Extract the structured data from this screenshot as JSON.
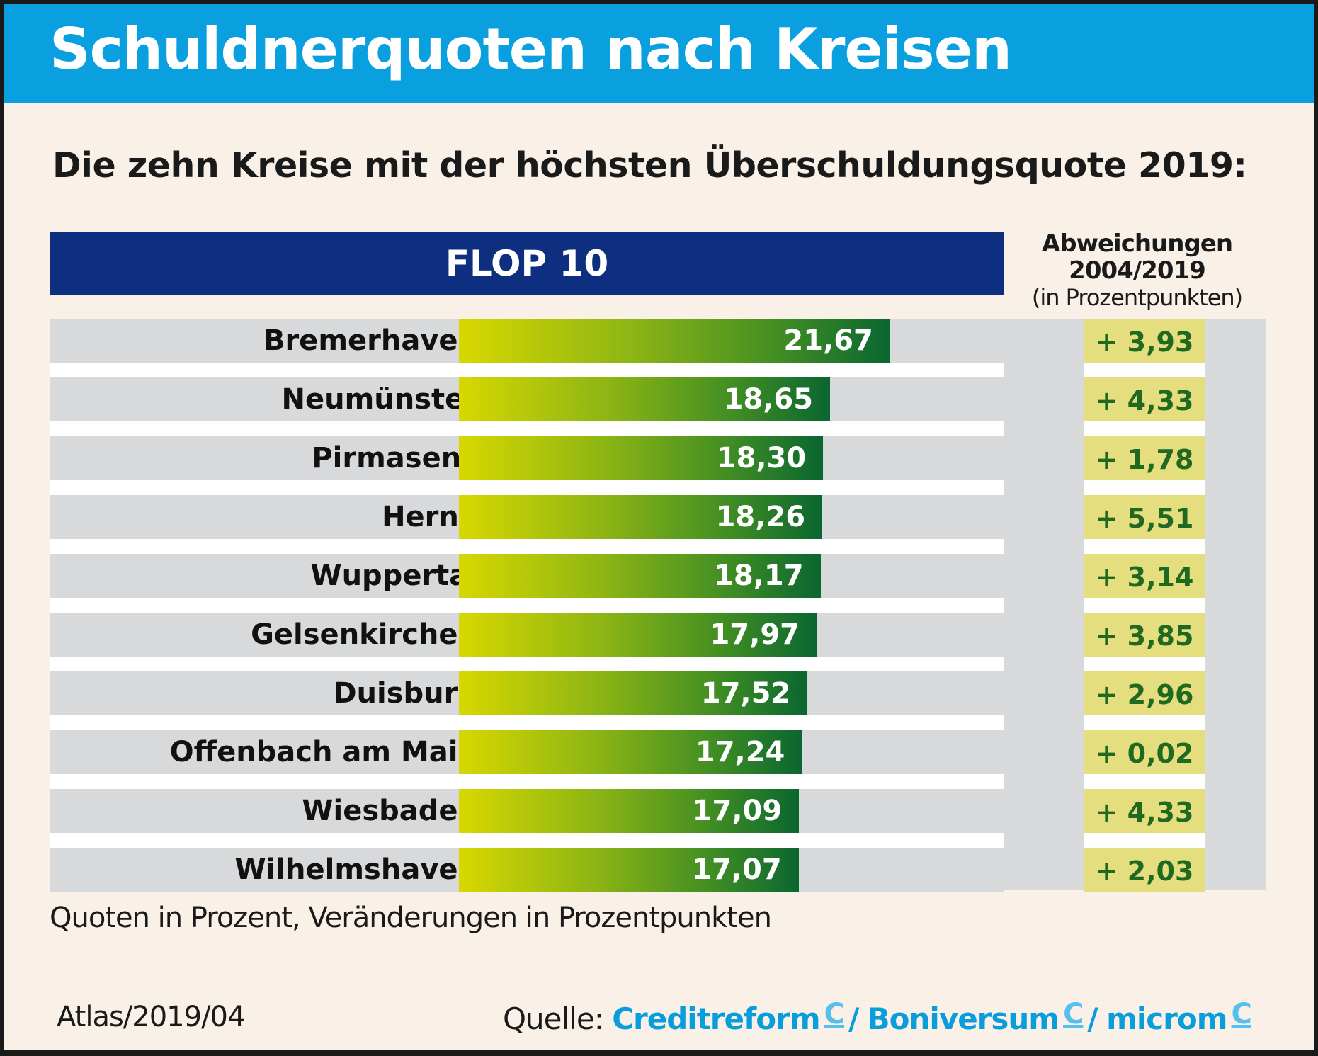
{
  "title": "Schuldnerquoten nach Kreisen",
  "subtitle": "Die zehn Kreise mit der höchsten Überschuldungsquote 2019:",
  "chart_data": {
    "type": "bar",
    "title": "FLOP 10",
    "categories": [
      "Bremerhaven",
      "Neumünster",
      "Pirmasens",
      "Herne",
      "Wuppertal",
      "Gelsenkirchen",
      "Duisburg",
      "Offenbach am Main",
      "Wiesbaden",
      "Wilhelmshaven"
    ],
    "values": [
      21.67,
      18.65,
      18.3,
      18.26,
      18.17,
      17.97,
      17.52,
      17.24,
      17.09,
      17.07
    ],
    "value_labels": [
      "21,67",
      "18,65",
      "18,30",
      "18,26",
      "18,17",
      "17,97",
      "17,52",
      "17,24",
      "17,09",
      "17,07"
    ],
    "change_header": {
      "line1": "Abweichungen",
      "line2": "2004/2019",
      "line3": "(in Prozentpunkten)"
    },
    "changes": [
      3.93,
      4.33,
      1.78,
      5.51,
      3.14,
      3.85,
      2.96,
      0.02,
      4.33,
      2.03
    ],
    "change_labels": [
      "+ 3,93",
      "+ 4,33",
      "+ 1,78",
      "+ 5,51",
      "+ 3,14",
      "+ 3,85",
      "+ 2,96",
      "+ 0,02",
      "+ 4,33",
      "+ 2,03"
    ],
    "colors": {
      "bar_start": "#d8d800",
      "bar_end": "#0a6630",
      "header": "#0e2f80",
      "change_box": "#e5de7e",
      "change_text": "#1f6a20"
    }
  },
  "note": "Quoten in Prozent, Veränderungen in Prozentpunkten",
  "atlas": "Atlas/2019/04",
  "source": {
    "label": "Quelle:",
    "s1": "Creditreform",
    "s2": "Boniversum",
    "s3": "microm",
    "sep": "/",
    "logo": "C"
  }
}
